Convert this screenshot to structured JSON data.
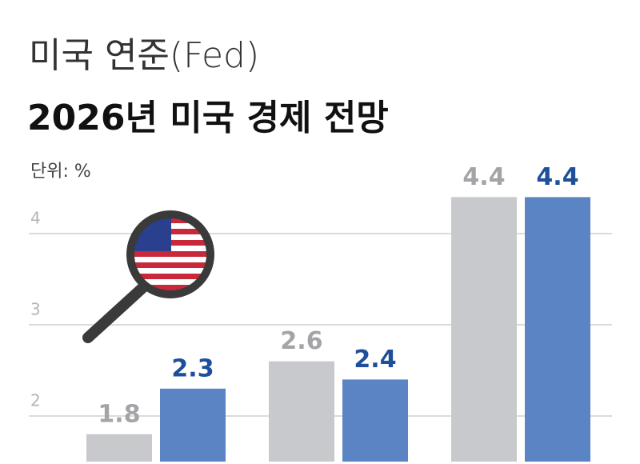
{
  "chart_data": {
    "type": "bar",
    "subtitle": "미국 연준(Fed)",
    "title": "2026년 미국 경제 전망",
    "unit_label": "단위: %",
    "categories": [
      null,
      null,
      null
    ],
    "series": [
      {
        "color": "#c8c9cc",
        "label_color": "#a3a4a7",
        "values": [
          1.8,
          2.6,
          4.4
        ]
      },
      {
        "color": "#5b84c4",
        "label_color": "#1f4e9a",
        "values": [
          2.3,
          2.4,
          4.4
        ]
      }
    ],
    "ylim": [
      1.5,
      5
    ],
    "yticks": [
      2,
      3,
      4
    ],
    "grid": true
  }
}
